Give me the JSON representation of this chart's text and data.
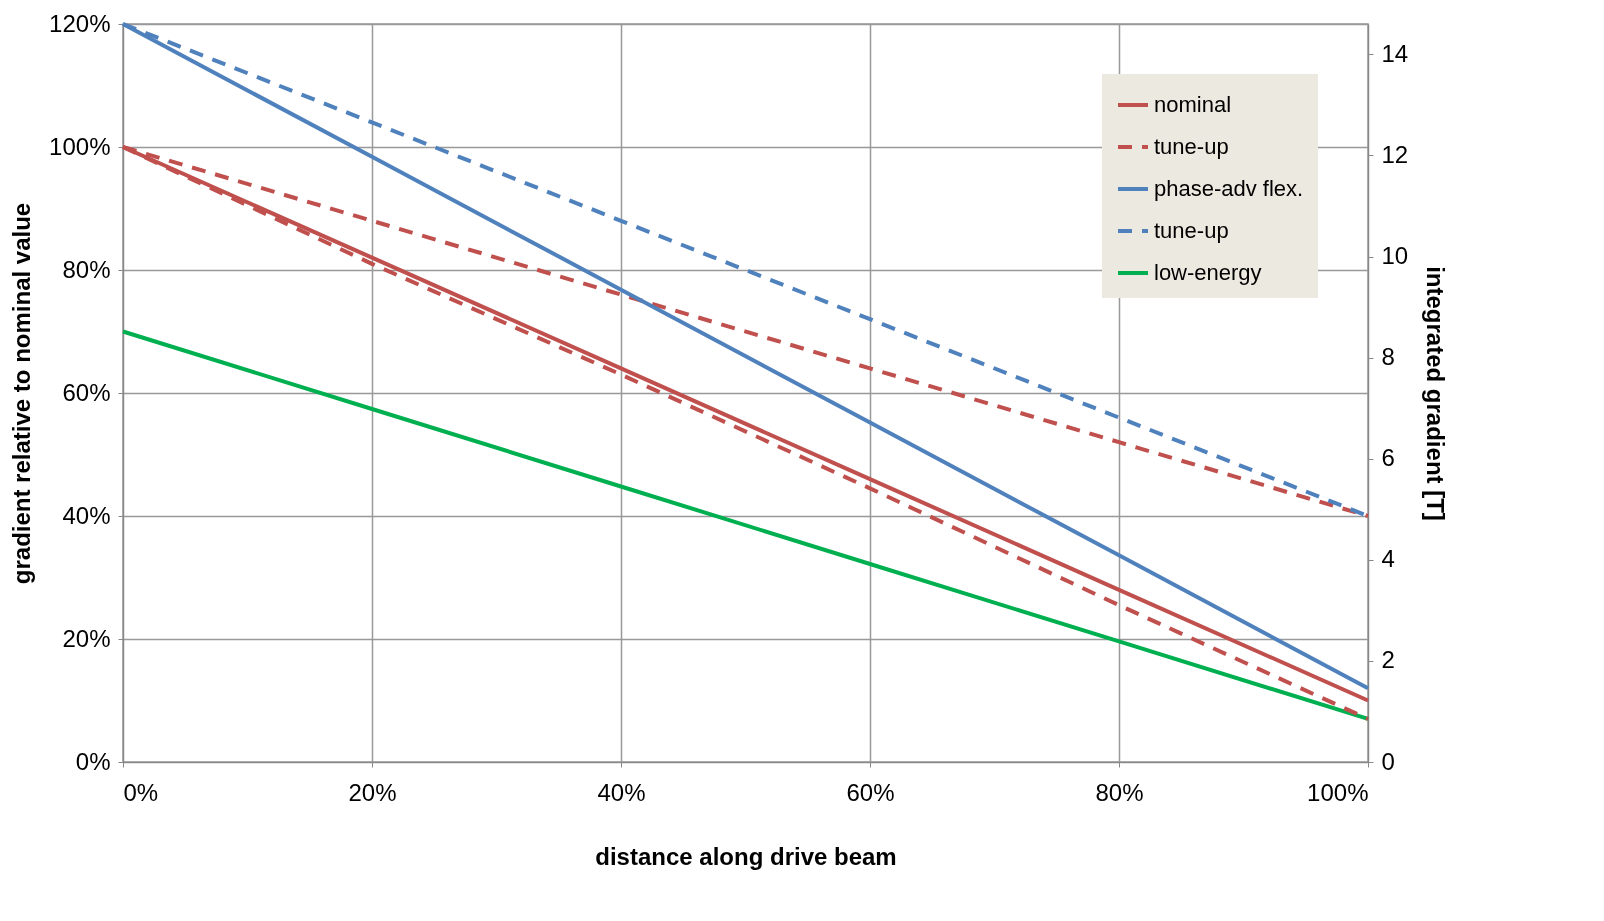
{
  "chart_data": {
    "type": "line",
    "xlabel": "distance along drive beam",
    "ylabel": "gradient relative to nominal value",
    "y2label": "integrated gradient [T]",
    "x": [
      0,
      0.2,
      0.4,
      0.6,
      0.8,
      1
    ],
    "xlim": [
      0,
      1
    ],
    "xticks": [
      {
        "value": 0,
        "label": "0%"
      },
      {
        "value": 0.2,
        "label": "20%"
      },
      {
        "value": 0.4,
        "label": "40%"
      },
      {
        "value": 0.6,
        "label": "60%"
      },
      {
        "value": 0.8,
        "label": "80%"
      },
      {
        "value": 1,
        "label": "100%"
      }
    ],
    "ylim": [
      0,
      1.2
    ],
    "yticks": [
      {
        "value": 0,
        "label": "0%"
      },
      {
        "value": 0.2,
        "label": "20%"
      },
      {
        "value": 0.4,
        "label": "40%"
      },
      {
        "value": 0.6,
        "label": "60%"
      },
      {
        "value": 0.8,
        "label": "80%"
      },
      {
        "value": 1,
        "label": "100%"
      },
      {
        "value": 1.2,
        "label": "120%"
      }
    ],
    "y2lim": [
      0,
      14.6
    ],
    "y2ticks": [
      0,
      2,
      4,
      6,
      8,
      10,
      12,
      14
    ],
    "series": [
      {
        "name": "nominal",
        "color": "#c0504d",
        "line_style": "solid",
        "values": [
          1,
          0.82,
          0.64,
          0.46,
          0.28,
          0.1
        ]
      },
      {
        "name": "tune-up",
        "color": "#c0504d",
        "line_style": "dashed",
        "values": [
          1,
          0.88,
          0.76,
          0.64,
          0.52,
          0.4
        ]
      },
      {
        "color": "#c0504d",
        "line_style": "dashed",
        "values": [
          1,
          0.81,
          0.63,
          0.445,
          0.255,
          0.07
        ]
      },
      {
        "name": "phase-adv flex.",
        "color": "#4f81bd",
        "line_style": "solid",
        "values": [
          1.2,
          0.984,
          0.768,
          0.552,
          0.336,
          0.12
        ]
      },
      {
        "name": "tune-up",
        "color": "#4f81bd",
        "line_style": "dashed",
        "values": [
          1.2,
          1.04,
          0.88,
          0.72,
          0.56,
          0.4
        ]
      },
      {
        "name": "low-energy",
        "color": "#00b050",
        "line_style": "solid",
        "values": [
          0.7,
          0.574,
          0.448,
          0.322,
          0.196,
          0.07
        ]
      }
    ],
    "grid": true,
    "legend": "top right"
  }
}
